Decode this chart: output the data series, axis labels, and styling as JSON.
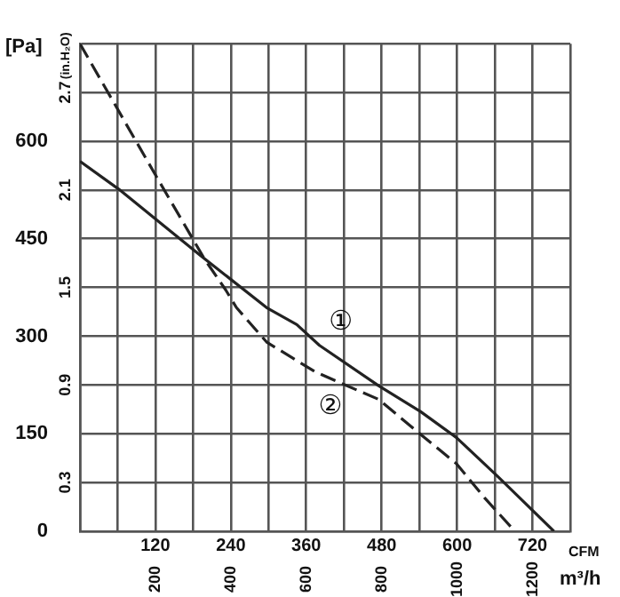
{
  "chart_data": {
    "type": "line",
    "xlabel": "CFM",
    "x2label": "m³/h",
    "ylabel": "[Pa]",
    "y2label": "(in.H₂O)",
    "series": [
      {
        "name": "①",
        "color": "#222222",
        "line_style": "solid",
        "x": [
          0,
          62,
          192,
          297,
          345,
          381,
          475,
          542,
          599,
          664,
          754
        ],
        "values": [
          569,
          526,
          424,
          344,
          318,
          286,
          224,
          184,
          144,
          85,
          0
        ]
      },
      {
        "name": "②",
        "color": "#222222",
        "line_style": "dashed",
        "x": [
          0,
          119,
          198,
          232,
          249,
          297,
          373,
          410,
          475,
          542,
          599,
          644,
          692
        ],
        "values": [
          750,
          550,
          419,
          371,
          344,
          291,
          246,
          230,
          203,
          149,
          104,
          51,
          0
        ]
      }
    ],
    "xlim": [
      0,
      780
    ],
    "xticks": [
      {
        "value": 0,
        "label": null
      },
      {
        "value": 60,
        "label": null
      },
      120,
      {
        "value": 180,
        "label": null
      },
      240,
      {
        "value": 300,
        "label": null
      },
      360,
      {
        "value": 420,
        "label": null
      },
      480,
      {
        "value": 540,
        "label": null
      },
      600,
      {
        "value": 660,
        "label": null
      },
      720,
      {
        "value": 780,
        "label": null
      }
    ],
    "ylim": [
      0,
      750
    ],
    "yticks": [
      0,
      {
        "value": 75,
        "label": null
      },
      150,
      {
        "value": 225,
        "label": null
      },
      300,
      {
        "value": 375,
        "label": null
      },
      450,
      {
        "value": 525,
        "label": null
      },
      600,
      {
        "value": 675,
        "label": null
      },
      {
        "value": 750,
        "label": null
      }
    ],
    "x2lim": [
      0,
      1300
    ],
    "x2ticks": [
      200,
      400,
      600,
      800,
      1000,
      1200
    ],
    "y2lim": [
      0,
      3.0
    ],
    "y2ticks": [
      0.3,
      0.9,
      1.5,
      2.1,
      2.7
    ],
    "grid": true
  }
}
